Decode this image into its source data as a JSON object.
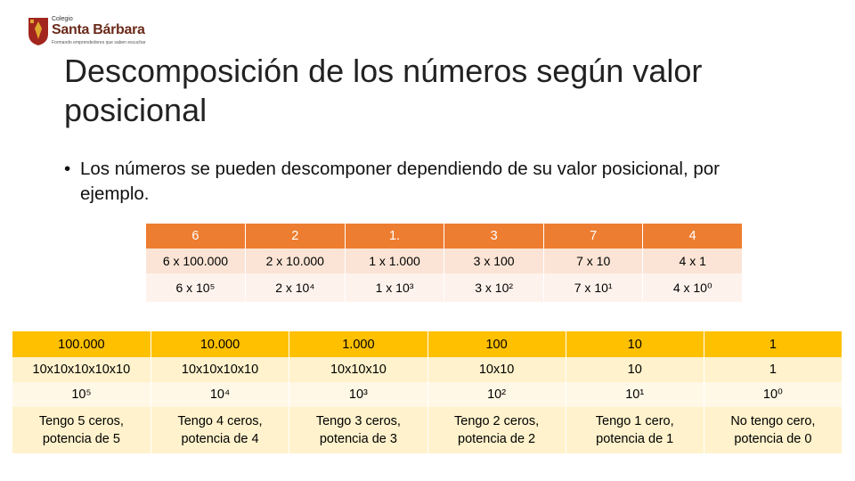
{
  "logo": {
    "top_text": "Colegio",
    "name": "Santa Bárbara",
    "tagline": "Formando emprendedores que saben escuchar",
    "colors": {
      "shield_red": "#a3261e",
      "shield_gold": "#e0a82e"
    }
  },
  "slide": {
    "title": "Descomposición de los números según valor posicional",
    "bullet": "Los números se pueden descomponer dependiendo de su valor posicional, por ejemplo."
  },
  "table1": {
    "header": [
      "6",
      "2",
      "1.",
      "3",
      "7",
      "4"
    ],
    "row1": [
      "6 x 100.000",
      "2 x 10.000",
      "1 x 1.000",
      "3 x 100",
      "7 x 10",
      "4 x 1"
    ],
    "row2": [
      "6 x 10⁵",
      "2 x 10⁴",
      "1 x 10³",
      "3 x 10²",
      "7 x 10¹",
      "4 x 10⁰"
    ],
    "colors": {
      "header": "#ed7d31",
      "row1": "#fbe4d5",
      "row2": "#fef2ec"
    }
  },
  "table2": {
    "header": [
      "100.000",
      "10.000",
      "1.000",
      "100",
      "10",
      "1"
    ],
    "row1": [
      "10x10x10x10x10",
      "10x10x10x10",
      "10x10x10",
      "10x10",
      "10",
      "1"
    ],
    "row2": [
      "10⁵",
      "10⁴",
      "10³",
      "10²",
      "10¹",
      "10⁰"
    ],
    "row3": [
      [
        "Tengo 5 ceros,",
        "potencia de 5"
      ],
      [
        "Tengo 4 ceros,",
        "potencia de 4"
      ],
      [
        "Tengo 3 ceros,",
        "potencia de 3"
      ],
      [
        "Tengo 2 ceros,",
        "potencia de 2"
      ],
      [
        "Tengo 1 cero,",
        "potencia de 1"
      ],
      [
        "No tengo cero,",
        "potencia de 0"
      ]
    ],
    "colors": {
      "header": "#ffc000",
      "row1": "#fff2cc",
      "row2": "#fff8e6"
    }
  }
}
